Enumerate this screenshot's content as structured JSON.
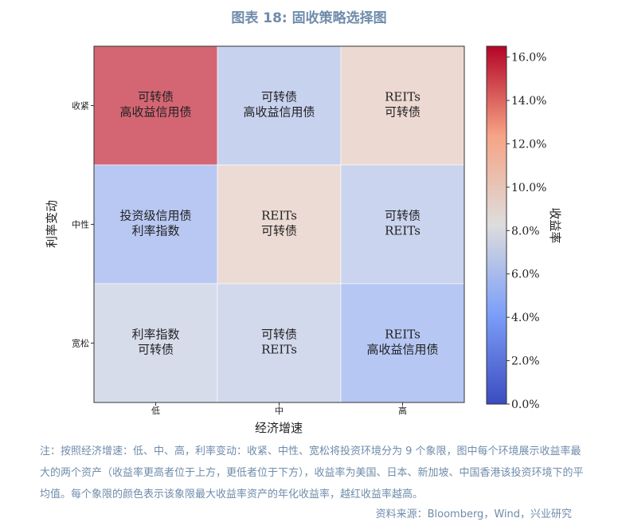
{
  "page": {
    "title": "图表 18: 固收策略选择图",
    "note": "注：按照经济增速：低、中、高，利率变动：收紧、中性、宽松将投资环境分为 9 个象限，图中每个环境展示收益率最大的两个资产（收益率更高者位于上方，更低者位于下方），收益率为美国、日本、新加坡、中国香港该投资环境下的平均值。每个象限的颜色表示该象限最大收益率资产的年化收益率，越红收益率越高。",
    "source": "资料来源：Bloomberg，Wind，兴业研究"
  },
  "chart_data": {
    "type": "heatmap",
    "x_categories": [
      "低",
      "中",
      "高"
    ],
    "y_categories": [
      "收紧",
      "中性",
      "宽松"
    ],
    "xlabel": "经济增速",
    "ylabel": "利率变动",
    "colorbar": {
      "label": "收益率",
      "range": [
        0,
        16.5
      ],
      "ticks": [
        0.0,
        2.0,
        4.0,
        6.0,
        8.0,
        10.0,
        12.0,
        14.0,
        16.0
      ],
      "tick_labels": [
        "0.0%",
        "2.0%",
        "4.0%",
        "6.0%",
        "8.0%",
        "10.0%",
        "12.0%",
        "14.0%",
        "16.0%"
      ],
      "colormap": "coolwarm",
      "position": "right"
    },
    "cells": [
      {
        "row": 0,
        "col": 0,
        "value": 15.5,
        "labels": [
          "可转债",
          "高收益信用债"
        ]
      },
      {
        "row": 0,
        "col": 1,
        "value": 6.4,
        "labels": [
          "可转债",
          "高收益信用债"
        ]
      },
      {
        "row": 0,
        "col": 2,
        "value": 9.6,
        "labels": [
          "REITs",
          "可转债"
        ]
      },
      {
        "row": 1,
        "col": 0,
        "value": 5.5,
        "labels": [
          "投资级信用债",
          "利率指数"
        ]
      },
      {
        "row": 1,
        "col": 1,
        "value": 9.4,
        "labels": [
          "REITs",
          "可转债"
        ]
      },
      {
        "row": 1,
        "col": 2,
        "value": 6.6,
        "labels": [
          "可转债",
          "REITs"
        ]
      },
      {
        "row": 2,
        "col": 0,
        "value": 7.3,
        "labels": [
          "利率指数",
          "可转债"
        ]
      },
      {
        "row": 2,
        "col": 1,
        "value": 7.0,
        "labels": [
          "可转债",
          "REITs"
        ]
      },
      {
        "row": 2,
        "col": 2,
        "value": 5.4,
        "labels": [
          "REITs",
          "高收益信用债"
        ]
      }
    ]
  }
}
